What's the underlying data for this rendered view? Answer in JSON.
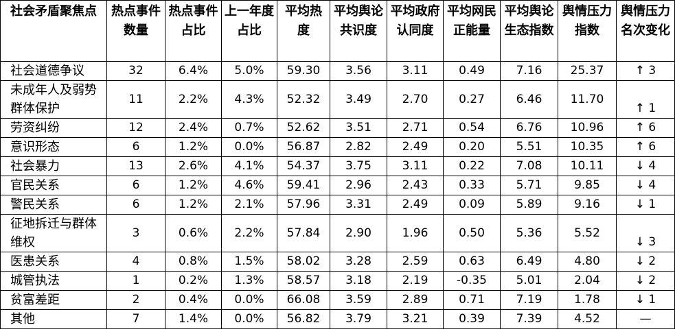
{
  "table": {
    "header": [
      "社会矛盾聚焦点",
      "热点事件数量",
      "热点事件占比",
      "上一年度占比",
      "平均热度",
      "平均舆论共识度",
      "平均政府认同度",
      "平均网民正能量",
      "平均舆论生态指数",
      "舆情压力指数",
      "舆情压力名次变化"
    ],
    "rows": [
      [
        "社会道德争议",
        "32",
        "6.4%",
        "5.0%",
        "59.30",
        "3.56",
        "3.11",
        "0.49",
        "7.16",
        "25.37",
        "↑ 3"
      ],
      [
        "未成年人及弱势群体保护",
        "11",
        "2.2%",
        "4.3%",
        "52.32",
        "3.49",
        "2.70",
        "0.27",
        "6.46",
        "11.70",
        "↑ 1"
      ],
      [
        "劳资纠纷",
        "12",
        "2.4%",
        "0.7%",
        "52.62",
        "3.51",
        "2.71",
        "0.54",
        "6.76",
        "10.96",
        "↑ 6"
      ],
      [
        "意识形态",
        "6",
        "1.2%",
        "0.0%",
        "56.87",
        "2.82",
        "2.49",
        "0.20",
        "5.51",
        "10.35",
        "↑ 6"
      ],
      [
        "社会暴力",
        "13",
        "2.6%",
        "4.1%",
        "54.37",
        "3.75",
        "3.11",
        "0.22",
        "7.08",
        "10.11",
        "↓ 4"
      ],
      [
        "官民关系",
        "6",
        "1.2%",
        "4.6%",
        "59.41",
        "2.96",
        "2.43",
        "0.33",
        "5.71",
        "9.85",
        "↓ 4"
      ],
      [
        "警民关系",
        "6",
        "1.2%",
        "2.1%",
        "57.96",
        "3.31",
        "2.49",
        "0.09",
        "5.89",
        "9.16",
        "↓ 1"
      ],
      [
        "征地拆迁与群体维权",
        "3",
        "0.6%",
        "2.2%",
        "57.84",
        "2.90",
        "1.96",
        "0.50",
        "5.36",
        "5.52",
        "↓ 3"
      ],
      [
        "医患关系",
        "4",
        "0.8%",
        "1.5%",
        "58.02",
        "3.28",
        "2.59",
        "0.63",
        "6.49",
        "4.80",
        "↓ 2"
      ],
      [
        "城管执法",
        "1",
        "0.2%",
        "1.3%",
        "58.57",
        "3.18",
        "2.19",
        "-0.35",
        "5.01",
        "2.04",
        "↓ 2"
      ],
      [
        "贫富差距",
        "2",
        "0.4%",
        "0.0%",
        "66.08",
        "3.59",
        "2.89",
        "0.71",
        "7.19",
        "1.78",
        "↓ 1"
      ],
      [
        "其他",
        "7",
        "1.4%",
        "0.0%",
        "56.82",
        "3.79",
        "3.21",
        "0.39",
        "7.39",
        "4.52",
        "—"
      ]
    ]
  }
}
